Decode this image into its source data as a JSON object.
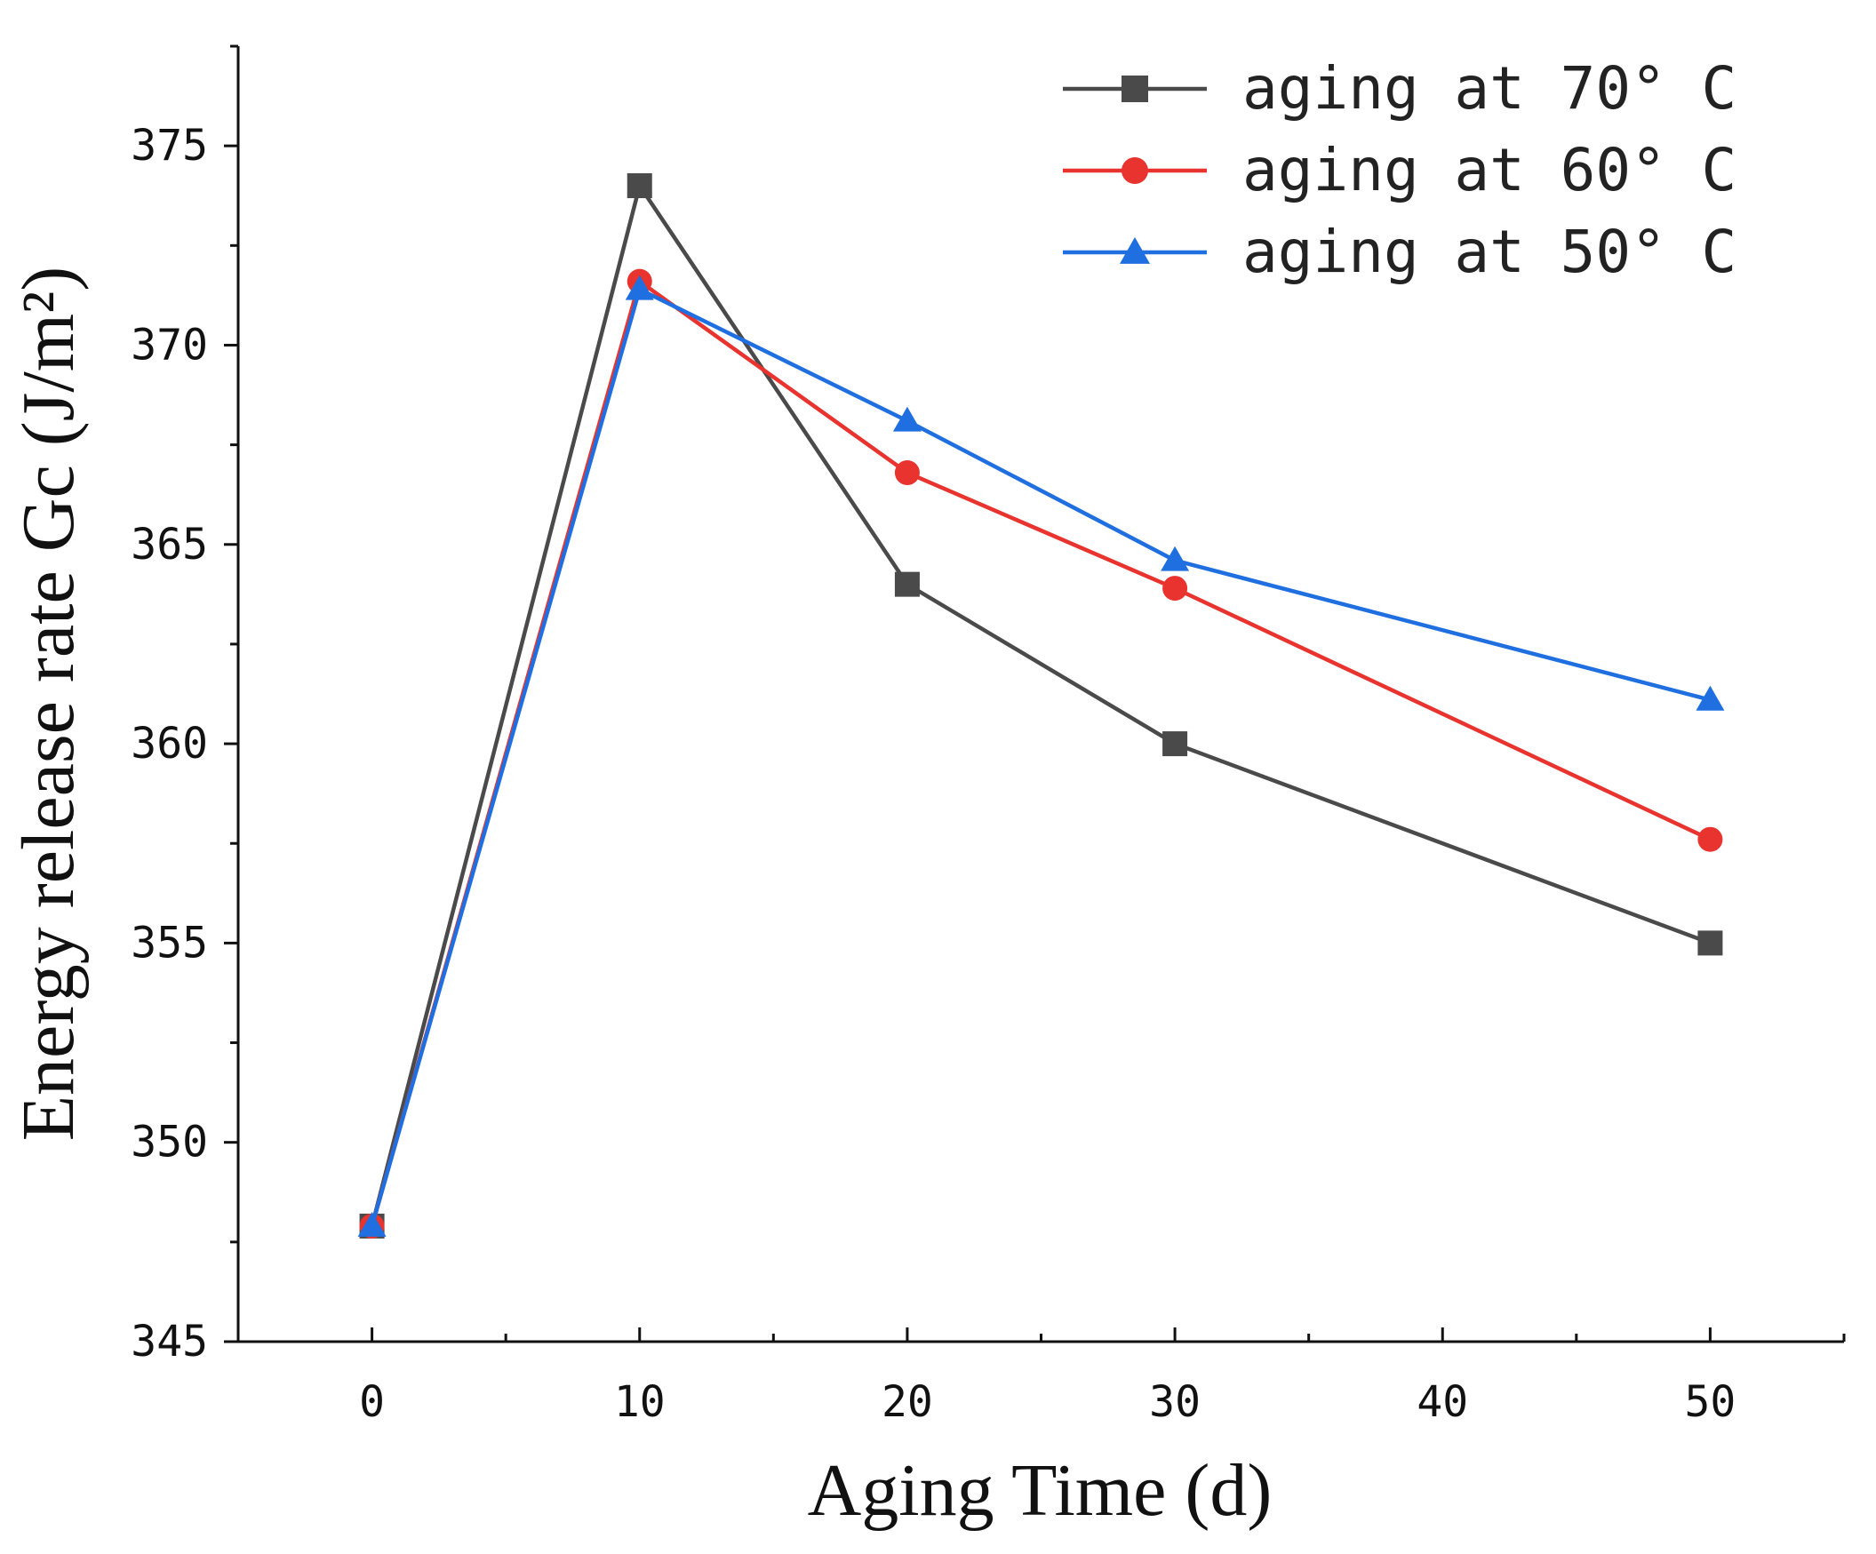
{
  "chart_data": {
    "type": "line",
    "title": "",
    "xlabel": "Aging Time (d)",
    "ylabel": "Energy release rate Gc (J/m²)",
    "xlim": [
      -5,
      55
    ],
    "ylim": [
      345,
      377.5
    ],
    "xticks": [
      0,
      10,
      20,
      30,
      40,
      50
    ],
    "yticks": [
      345,
      350,
      355,
      360,
      365,
      370,
      375
    ],
    "grid": false,
    "legend_position": "top-right",
    "x": [
      0,
      10,
      20,
      30,
      50
    ],
    "series": [
      {
        "name": "aging at 70° C",
        "color": "#4a4a4a",
        "marker": "square",
        "values": [
          347.9,
          374.0,
          364.0,
          360.0,
          355.0
        ]
      },
      {
        "name": "aging at 60° C",
        "color": "#e8332f",
        "marker": "circle",
        "values": [
          347.9,
          371.6,
          366.8,
          363.9,
          357.6
        ]
      },
      {
        "name": "aging at 50° C",
        "color": "#1f6fe0",
        "marker": "triangle",
        "values": [
          347.9,
          371.4,
          368.1,
          364.6,
          361.1
        ]
      }
    ]
  }
}
